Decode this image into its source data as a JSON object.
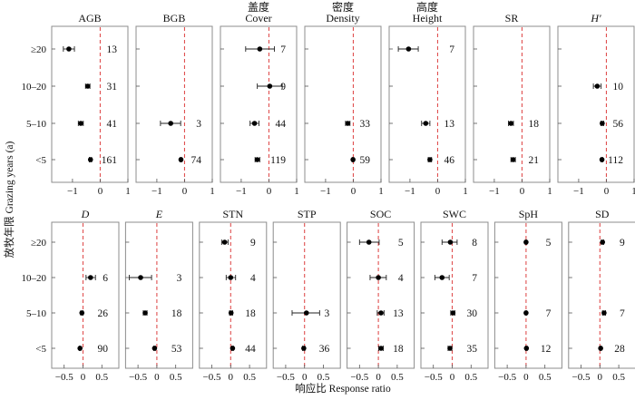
{
  "chart_data": {
    "type": "scatter",
    "subtype": "forest-plot",
    "ylabel": "放牧年限 Grazing years (a)",
    "xlabel": "响应比 Response ratio",
    "categories": [
      "≥20",
      "10–20",
      "5–10",
      "<5"
    ],
    "reference_line": 0,
    "rows": [
      {
        "xlim": [
          -1.75,
          1.0
        ],
        "xticks": [
          -1,
          0,
          1
        ],
        "xtick_labels": [
          "−1",
          "0",
          "1"
        ],
        "panels": [
          {
            "title_cn": "",
            "title": "AGB",
            "italic": false,
            "points": [
              {
                "cat": "≥20",
                "mean": -1.13,
                "lo": -1.33,
                "hi": -0.93,
                "n": "13"
              },
              {
                "cat": "10–20",
                "mean": -0.45,
                "lo": -0.53,
                "hi": -0.37,
                "n": "31"
              },
              {
                "cat": "5–10",
                "mean": -0.7,
                "lo": -0.79,
                "hi": -0.61,
                "n": "41"
              },
              {
                "cat": "<5",
                "mean": -0.35,
                "lo": -0.39,
                "hi": -0.31,
                "n": "161"
              }
            ]
          },
          {
            "title_cn": "",
            "title": "BGB",
            "italic": false,
            "points": [
              {
                "cat": "5–10",
                "mean": -0.5,
                "lo": -0.87,
                "hi": -0.14,
                "n": "3"
              },
              {
                "cat": "<5",
                "mean": -0.13,
                "lo": -0.16,
                "hi": -0.1,
                "n": "74"
              }
            ]
          },
          {
            "title_cn": "盖度",
            "title": "Cover",
            "italic": false,
            "points": [
              {
                "cat": "≥20",
                "mean": -0.33,
                "lo": -0.84,
                "hi": 0.2,
                "n": "7"
              },
              {
                "cat": "10–20",
                "mean": 0.03,
                "lo": -0.42,
                "hi": 0.48,
                "n": "9"
              },
              {
                "cat": "5–10",
                "mean": -0.52,
                "lo": -0.68,
                "hi": -0.36,
                "n": "44"
              },
              {
                "cat": "<5",
                "mean": -0.42,
                "lo": -0.5,
                "hi": -0.33,
                "n": "119"
              }
            ]
          },
          {
            "title_cn": "密度",
            "title": "Density",
            "italic": false,
            "points": [
              {
                "cat": "5–10",
                "mean": -0.2,
                "lo": -0.28,
                "hi": -0.12,
                "n": "33"
              },
              {
                "cat": "<5",
                "mean": -0.01,
                "lo": -0.04,
                "hi": 0.02,
                "n": "59"
              }
            ]
          },
          {
            "title_cn": "高度",
            "title": "Height",
            "italic": false,
            "points": [
              {
                "cat": "≥20",
                "mean": -1.05,
                "lo": -1.42,
                "hi": -0.7,
                "n": "7"
              },
              {
                "cat": "5–10",
                "mean": -0.43,
                "lo": -0.58,
                "hi": -0.28,
                "n": "13"
              },
              {
                "cat": "<5",
                "mean": -0.28,
                "lo": -0.34,
                "hi": -0.22,
                "n": "46"
              }
            ]
          },
          {
            "title_cn": "",
            "title": "SR",
            "italic": false,
            "points": [
              {
                "cat": "5–10",
                "mean": -0.4,
                "lo": -0.49,
                "hi": -0.31,
                "n": "18"
              },
              {
                "cat": "<5",
                "mean": -0.32,
                "lo": -0.4,
                "hi": -0.24,
                "n": "21"
              }
            ]
          },
          {
            "title_cn": "",
            "title": "H′",
            "italic": true,
            "points": [
              {
                "cat": "10–20",
                "mean": -0.33,
                "lo": -0.47,
                "hi": -0.19,
                "n": "10"
              },
              {
                "cat": "5–10",
                "mean": -0.15,
                "lo": -0.2,
                "hi": -0.1,
                "n": "56"
              },
              {
                "cat": "<5",
                "mean": -0.16,
                "lo": -0.19,
                "hi": -0.13,
                "n": "112"
              }
            ]
          }
        ]
      },
      {
        "xlim": [
          -0.83,
          0.95
        ],
        "xticks": [
          -0.5,
          0,
          0.5
        ],
        "xtick_labels": [
          "−0.5",
          "0",
          "0.5"
        ],
        "panels": [
          {
            "title_cn": "",
            "title": "D",
            "italic": true,
            "points": [
              {
                "cat": "10–20",
                "mean": 0.2,
                "lo": 0.08,
                "hi": 0.33,
                "n": "6"
              },
              {
                "cat": "5–10",
                "mean": -0.03,
                "lo": -0.06,
                "hi": 0.0,
                "n": "26"
              },
              {
                "cat": "<5",
                "mean": -0.08,
                "lo": -0.1,
                "hi": -0.06,
                "n": "90"
              }
            ]
          },
          {
            "title_cn": "",
            "title": "E",
            "italic": true,
            "points": [
              {
                "cat": "10–20",
                "mean": -0.43,
                "lo": -0.73,
                "hi": -0.14,
                "n": "3"
              },
              {
                "cat": "5–10",
                "mean": -0.31,
                "lo": -0.36,
                "hi": -0.26,
                "n": "18"
              },
              {
                "cat": "<5",
                "mean": -0.06,
                "lo": -0.08,
                "hi": -0.04,
                "n": "53"
              }
            ]
          },
          {
            "title_cn": "",
            "title": "STN",
            "italic": false,
            "points": [
              {
                "cat": "≥20",
                "mean": -0.16,
                "lo": -0.24,
                "hi": -0.07,
                "n": "9"
              },
              {
                "cat": "10–20",
                "mean": 0.0,
                "lo": -0.12,
                "hi": 0.13,
                "n": "4"
              },
              {
                "cat": "5–10",
                "mean": 0.01,
                "lo": -0.03,
                "hi": 0.05,
                "n": "18"
              },
              {
                "cat": "<5",
                "mean": 0.05,
                "lo": 0.03,
                "hi": 0.07,
                "n": "44"
              }
            ]
          },
          {
            "title_cn": "",
            "title": "STP",
            "italic": false,
            "points": [
              {
                "cat": "5–10",
                "mean": 0.05,
                "lo": -0.33,
                "hi": 0.4,
                "n": "3"
              },
              {
                "cat": "<5",
                "mean": -0.02,
                "lo": -0.05,
                "hi": 0.01,
                "n": "36"
              }
            ]
          },
          {
            "title_cn": "",
            "title": "SOC",
            "italic": false,
            "points": [
              {
                "cat": "≥20",
                "mean": -0.25,
                "lo": -0.5,
                "hi": 0.02,
                "n": "5"
              },
              {
                "cat": "10–20",
                "mean": 0.0,
                "lo": -0.22,
                "hi": 0.21,
                "n": "4"
              },
              {
                "cat": "5–10",
                "mean": 0.07,
                "lo": -0.03,
                "hi": 0.15,
                "n": "13"
              },
              {
                "cat": "<5",
                "mean": 0.07,
                "lo": 0.01,
                "hi": 0.13,
                "n": "18"
              }
            ]
          },
          {
            "title_cn": "",
            "title": "SWC",
            "italic": false,
            "points": [
              {
                "cat": "≥20",
                "mean": -0.05,
                "lo": -0.27,
                "hi": 0.13,
                "n": "8"
              },
              {
                "cat": "10–20",
                "mean": -0.27,
                "lo": -0.46,
                "hi": -0.08,
                "n": "7"
              },
              {
                "cat": "5–10",
                "mean": 0.02,
                "lo": -0.04,
                "hi": 0.07,
                "n": "30"
              },
              {
                "cat": "<5",
                "mean": -0.06,
                "lo": -0.11,
                "hi": -0.01,
                "n": "35"
              }
            ]
          },
          {
            "title_cn": "",
            "title": "SpH",
            "italic": false,
            "points": [
              {
                "cat": "≥20",
                "mean": 0.0,
                "lo": -0.02,
                "hi": 0.02,
                "n": "5"
              },
              {
                "cat": "5–10",
                "mean": 0.0,
                "lo": -0.02,
                "hi": 0.02,
                "n": "7"
              },
              {
                "cat": "<5",
                "mean": 0.01,
                "lo": -0.01,
                "hi": 0.03,
                "n": "12"
              }
            ]
          },
          {
            "title_cn": "",
            "title": "SD",
            "italic": false,
            "points": [
              {
                "cat": "≥20",
                "mean": 0.07,
                "lo": 0.04,
                "hi": 0.1,
                "n": "9"
              },
              {
                "cat": "5–10",
                "mean": 0.11,
                "lo": 0.07,
                "hi": 0.15,
                "n": "7"
              },
              {
                "cat": "<5",
                "mean": 0.02,
                "lo": 0.0,
                "hi": 0.04,
                "n": "28"
              }
            ]
          }
        ]
      }
    ]
  }
}
